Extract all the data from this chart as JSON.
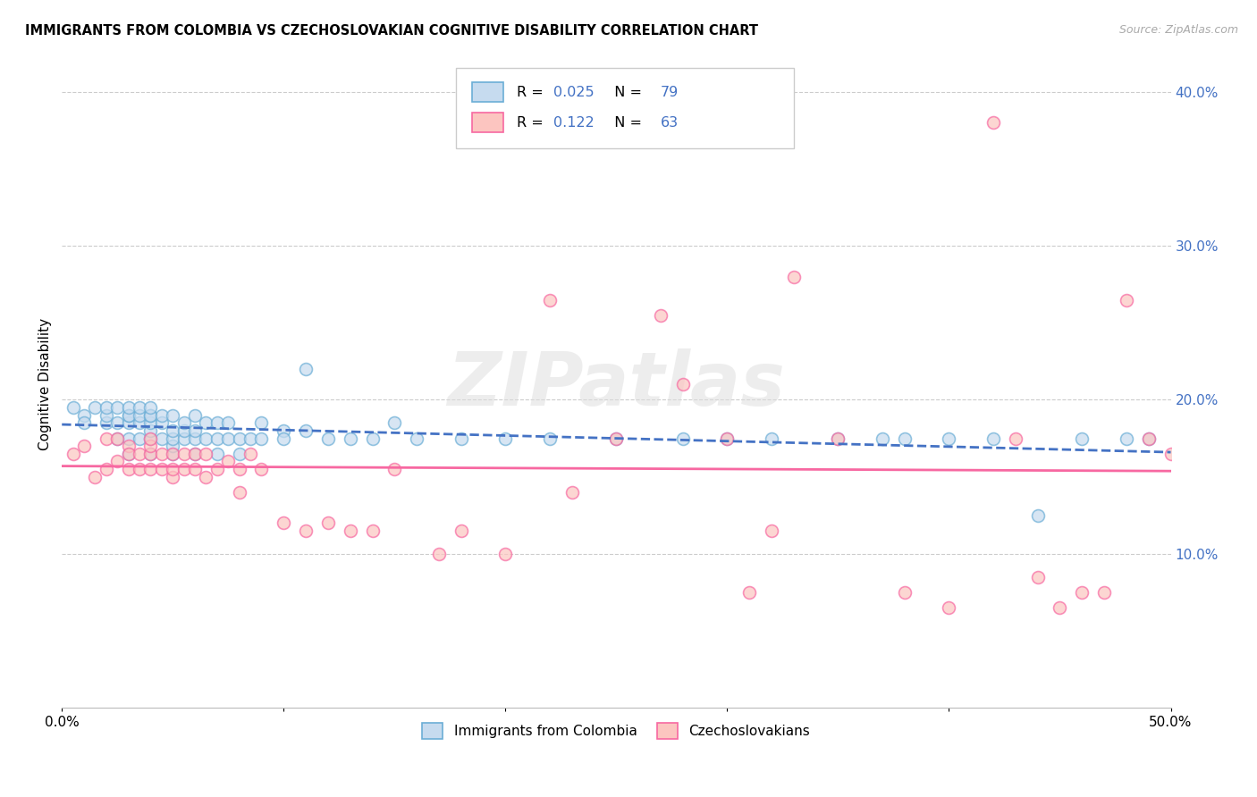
{
  "title": "IMMIGRANTS FROM COLOMBIA VS CZECHOSLOVAKIAN COGNITIVE DISABILITY CORRELATION CHART",
  "source": "Source: ZipAtlas.com",
  "ylabel": "Cognitive Disability",
  "r_colombia": 0.025,
  "n_colombia": 79,
  "r_czech": 0.122,
  "n_czech": 63,
  "xlim": [
    0.0,
    0.5
  ],
  "ylim": [
    0.0,
    0.42
  ],
  "yticks": [
    0.1,
    0.2,
    0.3,
    0.4
  ],
  "ytick_labels": [
    "10.0%",
    "20.0%",
    "30.0%",
    "40.0%"
  ],
  "xticks": [
    0.0,
    0.1,
    0.2,
    0.3,
    0.4,
    0.5
  ],
  "color_colombia": "#6baed6",
  "color_colombia_face": "#c6dbef",
  "color_czech": "#f768a1",
  "color_czech_face": "#fcc5c0",
  "line_color_colombia": "#4472c4",
  "line_color_czech": "#f768a1",
  "watermark": "ZIPatlas",
  "colombia_x": [
    0.005,
    0.01,
    0.01,
    0.015,
    0.02,
    0.02,
    0.02,
    0.025,
    0.025,
    0.025,
    0.03,
    0.03,
    0.03,
    0.03,
    0.03,
    0.03,
    0.035,
    0.035,
    0.035,
    0.035,
    0.04,
    0.04,
    0.04,
    0.04,
    0.04,
    0.04,
    0.04,
    0.045,
    0.045,
    0.045,
    0.05,
    0.05,
    0.05,
    0.05,
    0.05,
    0.055,
    0.055,
    0.055,
    0.06,
    0.06,
    0.06,
    0.06,
    0.065,
    0.065,
    0.07,
    0.07,
    0.07,
    0.075,
    0.075,
    0.08,
    0.08,
    0.085,
    0.09,
    0.09,
    0.1,
    0.1,
    0.11,
    0.11,
    0.12,
    0.13,
    0.14,
    0.15,
    0.16,
    0.18,
    0.2,
    0.22,
    0.25,
    0.28,
    0.3,
    0.32,
    0.35,
    0.37,
    0.38,
    0.4,
    0.42,
    0.44,
    0.46,
    0.48,
    0.49
  ],
  "colombia_y": [
    0.195,
    0.19,
    0.185,
    0.195,
    0.185,
    0.19,
    0.195,
    0.175,
    0.185,
    0.195,
    0.165,
    0.175,
    0.185,
    0.19,
    0.19,
    0.195,
    0.175,
    0.185,
    0.19,
    0.195,
    0.165,
    0.175,
    0.18,
    0.185,
    0.19,
    0.19,
    0.195,
    0.175,
    0.185,
    0.19,
    0.165,
    0.17,
    0.175,
    0.18,
    0.19,
    0.175,
    0.18,
    0.185,
    0.165,
    0.175,
    0.18,
    0.19,
    0.175,
    0.185,
    0.165,
    0.175,
    0.185,
    0.175,
    0.185,
    0.165,
    0.175,
    0.175,
    0.175,
    0.185,
    0.18,
    0.175,
    0.18,
    0.22,
    0.175,
    0.175,
    0.175,
    0.185,
    0.175,
    0.175,
    0.175,
    0.175,
    0.175,
    0.175,
    0.175,
    0.175,
    0.175,
    0.175,
    0.175,
    0.175,
    0.175,
    0.125,
    0.175,
    0.175,
    0.175
  ],
  "czech_x": [
    0.005,
    0.01,
    0.015,
    0.02,
    0.02,
    0.025,
    0.025,
    0.03,
    0.03,
    0.03,
    0.035,
    0.035,
    0.04,
    0.04,
    0.04,
    0.04,
    0.045,
    0.045,
    0.05,
    0.05,
    0.05,
    0.055,
    0.055,
    0.06,
    0.06,
    0.065,
    0.065,
    0.07,
    0.075,
    0.08,
    0.08,
    0.085,
    0.09,
    0.1,
    0.11,
    0.12,
    0.13,
    0.14,
    0.15,
    0.17,
    0.18,
    0.2,
    0.22,
    0.23,
    0.25,
    0.27,
    0.28,
    0.3,
    0.32,
    0.33,
    0.35,
    0.38,
    0.4,
    0.42,
    0.43,
    0.44,
    0.45,
    0.46,
    0.47,
    0.48,
    0.49,
    0.5,
    0.31
  ],
  "czech_y": [
    0.165,
    0.17,
    0.15,
    0.155,
    0.175,
    0.16,
    0.175,
    0.155,
    0.17,
    0.165,
    0.155,
    0.165,
    0.155,
    0.165,
    0.17,
    0.175,
    0.155,
    0.165,
    0.15,
    0.155,
    0.165,
    0.155,
    0.165,
    0.155,
    0.165,
    0.15,
    0.165,
    0.155,
    0.16,
    0.14,
    0.155,
    0.165,
    0.155,
    0.12,
    0.115,
    0.12,
    0.115,
    0.115,
    0.155,
    0.1,
    0.115,
    0.1,
    0.265,
    0.14,
    0.175,
    0.255,
    0.21,
    0.175,
    0.115,
    0.28,
    0.175,
    0.075,
    0.065,
    0.38,
    0.175,
    0.085,
    0.065,
    0.075,
    0.075,
    0.265,
    0.175,
    0.165,
    0.075
  ]
}
